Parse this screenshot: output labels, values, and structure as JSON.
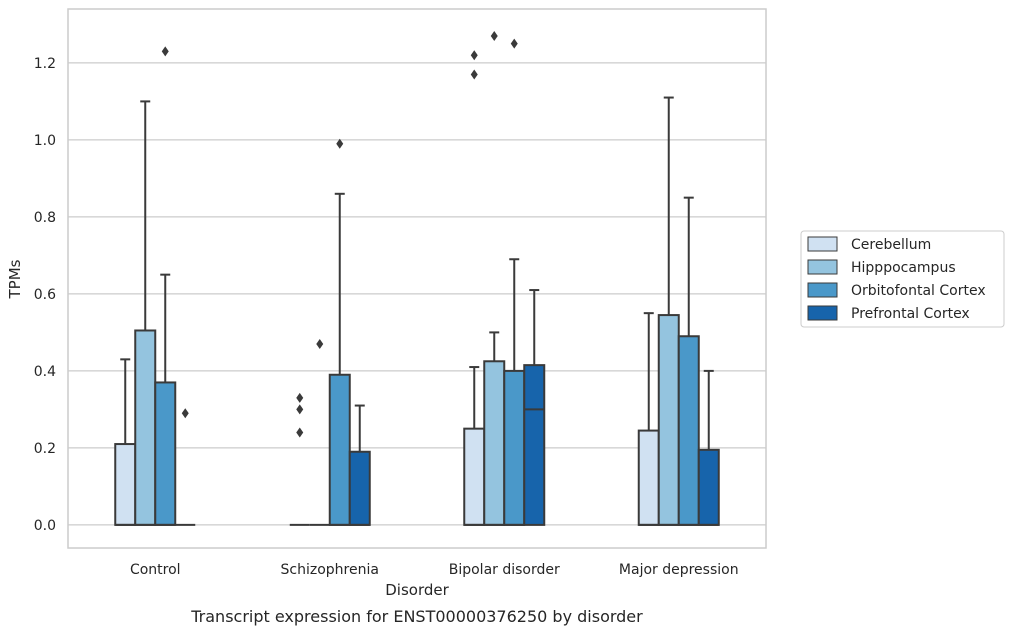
{
  "chart_data": {
    "type": "bar",
    "title": "",
    "caption": "Transcript expression for ENST00000376250 by disorder",
    "xlabel": "Disorder",
    "ylabel": "TPMs",
    "ylim": [
      -0.06,
      1.34
    ],
    "yticks": [
      "0.0",
      "0.2",
      "0.4",
      "0.6",
      "0.8",
      "1.0",
      "1.2"
    ],
    "ytick_values": [
      0.0,
      0.2,
      0.4,
      0.6,
      0.8,
      1.0,
      1.2
    ],
    "grid": "horizontal",
    "legend_position": "right",
    "categories": [
      "Control",
      "Schizophrenia",
      "Bipolar disorder",
      "Major depression"
    ],
    "series": [
      {
        "name": "Cerebellum",
        "color": "#d0e1f2",
        "boxes": [
          {
            "q1": 0.0,
            "median": 0.0,
            "q3": 0.21,
            "whisker_low": 0.0,
            "whisker_high": 0.43,
            "outliers": []
          },
          {
            "q1": 0.0,
            "median": 0.0,
            "q3": 0.0,
            "whisker_low": 0.0,
            "whisker_high": 0.0,
            "outliers": [
              0.33,
              0.3,
              0.24
            ]
          },
          {
            "q1": 0.0,
            "median": 0.0,
            "q3": 0.25,
            "whisker_low": 0.0,
            "whisker_high": 0.41,
            "outliers": [
              1.22,
              1.17
            ]
          },
          {
            "q1": 0.0,
            "median": 0.0,
            "q3": 0.245,
            "whisker_low": 0.0,
            "whisker_high": 0.55,
            "outliers": []
          }
        ]
      },
      {
        "name": "Hipppocampus",
        "color": "#94c4df",
        "boxes": [
          {
            "q1": 0.0,
            "median": 0.0,
            "q3": 0.505,
            "whisker_low": 0.0,
            "whisker_high": 1.1,
            "outliers": []
          },
          {
            "q1": 0.0,
            "median": 0.0,
            "q3": 0.0,
            "whisker_low": 0.0,
            "whisker_high": 0.0,
            "outliers": [
              0.47
            ]
          },
          {
            "q1": 0.0,
            "median": 0.0,
            "q3": 0.425,
            "whisker_low": 0.0,
            "whisker_high": 0.5,
            "outliers": [
              1.27
            ]
          },
          {
            "q1": 0.0,
            "median": 0.0,
            "q3": 0.545,
            "whisker_low": 0.0,
            "whisker_high": 1.11,
            "outliers": []
          }
        ]
      },
      {
        "name": "Orbitofontal Cortex",
        "color": "#4a98c9",
        "boxes": [
          {
            "q1": 0.0,
            "median": 0.0,
            "q3": 0.37,
            "whisker_low": 0.0,
            "whisker_high": 0.65,
            "outliers": [
              1.23
            ]
          },
          {
            "q1": 0.0,
            "median": 0.0,
            "q3": 0.39,
            "whisker_low": 0.0,
            "whisker_high": 0.86,
            "outliers": [
              0.99
            ]
          },
          {
            "q1": 0.0,
            "median": 0.0,
            "q3": 0.4,
            "whisker_low": 0.0,
            "whisker_high": 0.69,
            "outliers": [
              1.25
            ]
          },
          {
            "q1": 0.0,
            "median": 0.0,
            "q3": 0.49,
            "whisker_low": 0.0,
            "whisker_high": 0.85,
            "outliers": []
          }
        ]
      },
      {
        "name": "Prefrontal Cortex",
        "color": "#1764ab",
        "boxes": [
          {
            "q1": 0.0,
            "median": 0.0,
            "q3": 0.0,
            "whisker_low": 0.0,
            "whisker_high": 0.0,
            "outliers": [
              0.29
            ]
          },
          {
            "q1": 0.0,
            "median": 0.0,
            "q3": 0.19,
            "whisker_low": 0.0,
            "whisker_high": 0.31,
            "outliers": []
          },
          {
            "q1": 0.0,
            "median": 0.3,
            "q3": 0.415,
            "whisker_low": 0.0,
            "whisker_high": 0.61,
            "outliers": []
          },
          {
            "q1": 0.0,
            "median": 0.0,
            "q3": 0.195,
            "whisker_low": 0.0,
            "whisker_high": 0.4,
            "outliers": []
          }
        ]
      }
    ],
    "colors": {
      "grid": "#cccccc",
      "frame": "#cccccc",
      "edge": "#3a3a3a",
      "text": "#262626",
      "legend_border": "#cccccc"
    }
  }
}
